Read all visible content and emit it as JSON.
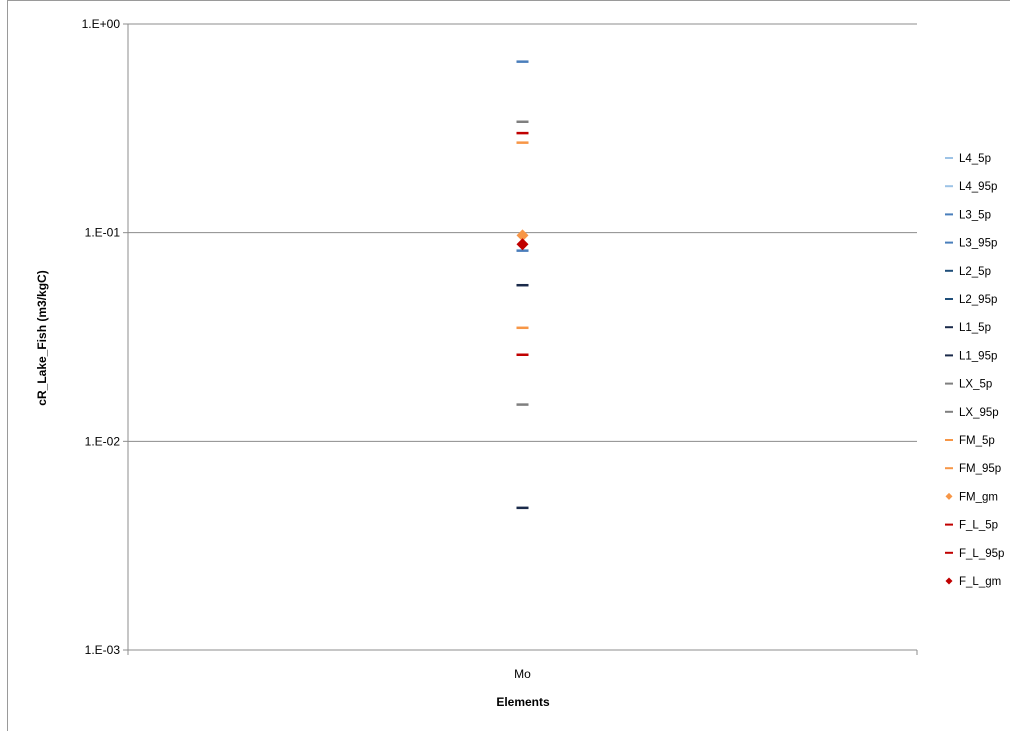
{
  "chart_data": {
    "type": "scatter",
    "title": "",
    "xlabel": "Elements",
    "ylabel": "cR_Lake_Fish (m3/kgC)",
    "yscale": "log",
    "ylim": [
      0.001,
      1
    ],
    "yticks": [
      {
        "value": 1,
        "label": "1.E+00"
      },
      {
        "value": 0.1,
        "label": "1.E-01"
      },
      {
        "value": 0.01,
        "label": "1.E-02"
      },
      {
        "value": 0.001,
        "label": "1.E-03"
      }
    ],
    "categories": [
      "Mo"
    ],
    "grid": true,
    "legend_position": "right",
    "series": [
      {
        "name": "L4_5p",
        "marker": "dash",
        "color": "#9dc3e6",
        "values": [
          null
        ]
      },
      {
        "name": "L4_95p",
        "marker": "dash",
        "color": "#9dc3e6",
        "values": [
          null
        ]
      },
      {
        "name": "L3_5p",
        "marker": "dash",
        "color": "#4a7ebb",
        "values": [
          0.082
        ]
      },
      {
        "name": "L3_95p",
        "marker": "dash",
        "color": "#4a7ebb",
        "values": [
          0.66
        ]
      },
      {
        "name": "L2_5p",
        "marker": "dash",
        "color": "#1f4e79",
        "values": [
          null
        ]
      },
      {
        "name": "L2_95p",
        "marker": "dash",
        "color": "#1f4e79",
        "values": [
          null
        ]
      },
      {
        "name": "L1_5p",
        "marker": "dash",
        "color": "#1a2a4a",
        "values": [
          0.0048
        ]
      },
      {
        "name": "L1_95p",
        "marker": "dash",
        "color": "#1a2a4a",
        "values": [
          0.056
        ]
      },
      {
        "name": "LX_5p",
        "marker": "dash",
        "color": "#7f7f7f",
        "values": [
          0.015
        ]
      },
      {
        "name": "LX_95p",
        "marker": "dash",
        "color": "#7f7f7f",
        "values": [
          0.34
        ]
      },
      {
        "name": "FM_5p",
        "marker": "dash",
        "color": "#f79646",
        "values": [
          0.035
        ]
      },
      {
        "name": "FM_95p",
        "marker": "dash",
        "color": "#f79646",
        "values": [
          0.27
        ]
      },
      {
        "name": "FM_gm",
        "marker": "diamond",
        "color": "#f79646",
        "values": [
          0.097
        ]
      },
      {
        "name": "F_L_5p",
        "marker": "dash",
        "color": "#c00000",
        "values": [
          0.026
        ]
      },
      {
        "name": "F_L_95p",
        "marker": "dash",
        "color": "#c00000",
        "values": [
          0.3
        ]
      },
      {
        "name": "F_L_gm",
        "marker": "diamond",
        "color": "#c00000",
        "values": [
          0.088
        ]
      }
    ]
  }
}
